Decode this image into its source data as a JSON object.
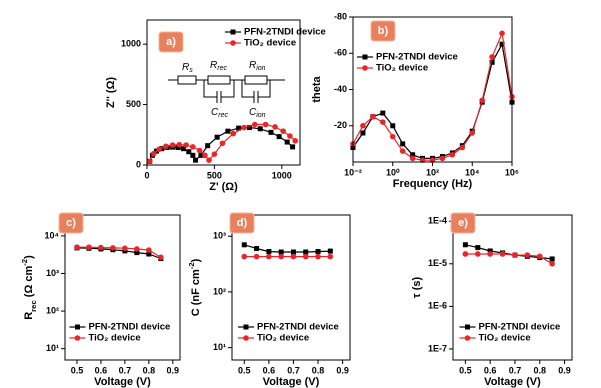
{
  "chart_data": [
    {
      "type": "line",
      "panel_label": "a)",
      "xlabel": [
        {
          "t": "Z' (Ω)"
        }
      ],
      "ylabel": [
        {
          "t": "Z'' (Ω)"
        }
      ],
      "xlim": [
        0,
        1135
      ],
      "xticks": [
        0,
        500,
        1000
      ],
      "ylim": [
        0,
        1200
      ],
      "yticks": [
        0,
        500,
        1000
      ],
      "legend": "upper right",
      "inset": [
        [
          {
            "t": "R"
          },
          {
            "t": "s",
            "shift": "sub"
          }
        ],
        [
          {
            "t": "R"
          },
          {
            "t": "rec",
            "shift": "sub"
          }
        ],
        [
          {
            "t": "R"
          },
          {
            "t": "ion",
            "shift": "sub"
          }
        ],
        [
          {
            "t": "C"
          },
          {
            "t": "rec",
            "shift": "sub"
          }
        ],
        [
          {
            "t": "C"
          },
          {
            "t": "ion",
            "shift": "sub"
          }
        ]
      ],
      "series": [
        {
          "name": "PFN-2TNDI device",
          "color": "#000000",
          "marker": "square",
          "x": [
            20,
            40,
            70,
            110,
            150,
            190,
            230,
            270,
            310,
            340,
            360,
            400,
            450,
            520,
            600,
            680,
            760,
            840,
            920,
            980,
            1040,
            1080
          ],
          "values": [
            30,
            80,
            115,
            135,
            145,
            148,
            145,
            135,
            110,
            80,
            40,
            80,
            160,
            230,
            280,
            305,
            310,
            300,
            270,
            235,
            190,
            150
          ]
        },
        {
          "name": "TiO₂ device",
          "color": "#e8262a",
          "marker": "circle",
          "x": [
            20,
            50,
            90,
            140,
            190,
            240,
            290,
            340,
            390,
            430,
            460,
            500,
            560,
            640,
            720,
            800,
            880,
            950,
            1010,
            1060,
            1100
          ],
          "values": [
            30,
            95,
            130,
            155,
            165,
            168,
            165,
            150,
            120,
            80,
            40,
            90,
            180,
            260,
            310,
            335,
            335,
            315,
            280,
            240,
            200
          ]
        }
      ]
    },
    {
      "type": "line",
      "panel_label": "b)",
      "xlabel": [
        {
          "t": "Frequency (Hz)"
        }
      ],
      "ylabel": [
        {
          "t": "theta"
        }
      ],
      "xlog": true,
      "xlim": [
        0.01,
        1000000
      ],
      "xticks": [
        {
          "value": 0.01,
          "label": "10⁻²"
        },
        {
          "value": 1,
          "label": "10⁰"
        },
        {
          "value": 100,
          "label": "10²"
        },
        {
          "value": 10000,
          "label": "10⁴"
        },
        {
          "value": 1000000,
          "label": "10⁶"
        }
      ],
      "ylim": [
        0,
        -80
      ],
      "yticks": [
        -80,
        -60,
        -40,
        -20
      ],
      "legend": "upper left",
      "x": [
        0.01,
        0.0316,
        0.1,
        0.316,
        1,
        3.16,
        10,
        31.6,
        100,
        316,
        1000,
        3160,
        10000,
        31600,
        100000,
        316000,
        1000000
      ],
      "series": [
        {
          "name": "PFN-2TNDI device",
          "color": "#000000",
          "marker": "square",
          "values": [
            -8,
            -16,
            -25,
            -27,
            -20,
            -10,
            -4,
            -2,
            -2,
            -3,
            -5,
            -9,
            -17,
            -33,
            -55,
            -65,
            -33
          ]
        },
        {
          "name": "TiO₂ device",
          "color": "#e8262a",
          "marker": "circle",
          "values": [
            -10,
            -20,
            -25,
            -22,
            -14,
            -6,
            -2,
            -1,
            -1,
            -2,
            -4,
            -8,
            -16,
            -34,
            -58,
            -71,
            -36
          ]
        }
      ]
    },
    {
      "type": "line",
      "panel_label": "c)",
      "xlabel": [
        {
          "t": "Voltage (V)"
        }
      ],
      "ylabel": [
        {
          "t": "R"
        },
        {
          "t": "rec",
          "shift": "sub"
        },
        {
          "t": " (Ω cm"
        },
        {
          "t": "-2",
          "shift": "super"
        },
        {
          "t": ")"
        }
      ],
      "xlim": [
        0.45,
        0.93
      ],
      "xticks": [
        0.5,
        0.6,
        0.7,
        0.8,
        0.9
      ],
      "ylog": true,
      "ylim": [
        5,
        36000
      ],
      "yticks": [
        {
          "value": 10,
          "label": "10¹"
        },
        {
          "value": 100,
          "label": "10²"
        },
        {
          "value": 1000,
          "label": "10³"
        },
        {
          "value": 10000,
          "label": "10⁴"
        }
      ],
      "legend": "lower center",
      "x": [
        0.5,
        0.55,
        0.6,
        0.65,
        0.7,
        0.75,
        0.8,
        0.85
      ],
      "series": [
        {
          "name": "PFN-2TNDI device",
          "color": "#000000",
          "marker": "square",
          "values": [
            4800,
            4700,
            4500,
            4300,
            4000,
            3600,
            3300,
            2500
          ]
        },
        {
          "name": "TiO₂ device",
          "color": "#e8262a",
          "marker": "circle",
          "values": [
            5000,
            5000,
            4900,
            4800,
            4700,
            4500,
            4200,
            2700
          ]
        }
      ]
    },
    {
      "type": "line",
      "panel_label": "d)",
      "xlabel": [
        {
          "t": "Voltage (V)"
        }
      ],
      "ylabel": [
        {
          "t": "C (nF cm"
        },
        {
          "t": "-2",
          "shift": "super"
        },
        {
          "t": ")"
        }
      ],
      "xlim": [
        0.45,
        0.93
      ],
      "xticks": [
        0.5,
        0.6,
        0.7,
        0.8,
        0.9
      ],
      "ylog": true,
      "ylim": [
        6,
        2400
      ],
      "yticks": [
        {
          "value": 10,
          "label": "10¹"
        },
        {
          "value": 100,
          "label": "10²"
        },
        {
          "value": 1000,
          "label": "10³"
        }
      ],
      "legend": "lower center",
      "x": [
        0.5,
        0.55,
        0.6,
        0.65,
        0.7,
        0.75,
        0.8,
        0.85
      ],
      "series": [
        {
          "name": "PFN-2TNDI device",
          "color": "#000000",
          "marker": "square",
          "values": [
            700,
            600,
            530,
            520,
            520,
            520,
            530,
            540
          ]
        },
        {
          "name": "TiO₂ device",
          "color": "#e8262a",
          "marker": "circle",
          "values": [
            430,
            430,
            430,
            430,
            430,
            430,
            430,
            430
          ]
        }
      ]
    },
    {
      "type": "line",
      "panel_label": "e)",
      "xlabel": [
        {
          "t": "Voltage (V)"
        }
      ],
      "ylabel": [
        {
          "t": "τ (s)"
        }
      ],
      "xlim": [
        0.45,
        0.93
      ],
      "xticks": [
        0.5,
        0.6,
        0.7,
        0.8,
        0.9
      ],
      "ylog": true,
      "ylim": [
        5.5e-08,
        0.00014
      ],
      "yticks": [
        {
          "value": 1e-07,
          "label": "1E-7"
        },
        {
          "value": 1e-06,
          "label": "1E-6"
        },
        {
          "value": 1e-05,
          "label": "1E-5"
        },
        {
          "value": 0.0001,
          "label": "1E-4"
        }
      ],
      "legend": "lower center",
      "x": [
        0.5,
        0.55,
        0.6,
        0.65,
        0.7,
        0.75,
        0.8,
        0.85
      ],
      "series": [
        {
          "name": "PFN-2TNDI device",
          "color": "#000000",
          "marker": "square",
          "values": [
            2.8e-05,
            2.4e-05,
            2e-05,
            1.8e-05,
            1.6e-05,
            1.5e-05,
            1.4e-05,
            1.3e-05
          ]
        },
        {
          "name": "TiO₂ device",
          "color": "#e8262a",
          "marker": "circle",
          "values": [
            1.7e-05,
            1.7e-05,
            1.7e-05,
            1.7e-05,
            1.6e-05,
            1.6e-05,
            1.5e-05,
            1e-05
          ]
        }
      ]
    }
  ]
}
